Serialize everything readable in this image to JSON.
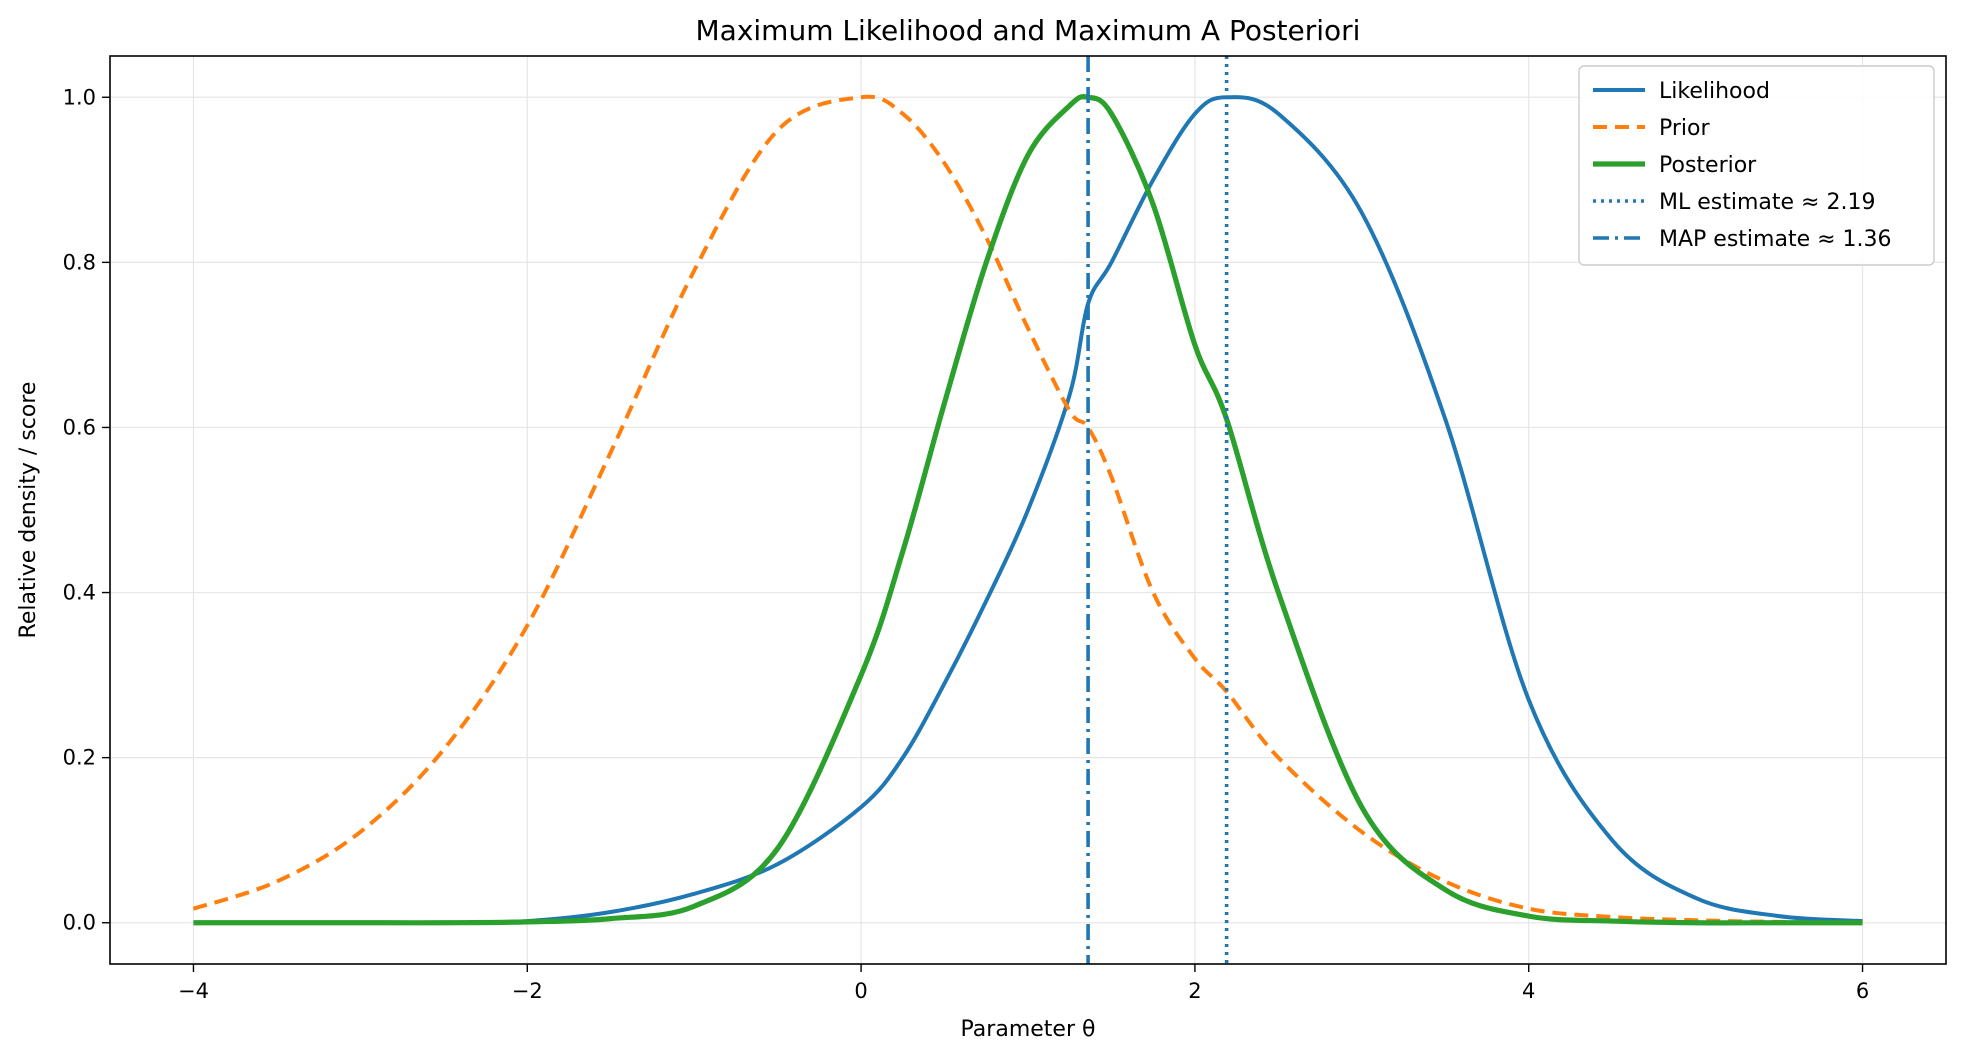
{
  "chart_data": {
    "type": "line",
    "title": "Maximum Likelihood and Maximum A Posteriori",
    "xlabel": "Parameter θ",
    "ylabel": "Relative density / score",
    "xlim": [
      -4.5,
      6.5
    ],
    "ylim": [
      -0.05,
      1.05
    ],
    "xticks": [
      -4,
      -2,
      0,
      2,
      4,
      6
    ],
    "xtick_labels": [
      "−4",
      "−2",
      "0",
      "2",
      "4",
      "6"
    ],
    "yticks": [
      0.0,
      0.2,
      0.4,
      0.6,
      0.8,
      1.0
    ],
    "ytick_labels": [
      "0.0",
      "0.2",
      "0.4",
      "0.6",
      "0.8",
      "1.0"
    ],
    "grid": true,
    "legend_position": "top-right",
    "x": [
      -4.0,
      -3.5,
      -3.0,
      -2.5,
      -2.0,
      -1.5,
      -1.0,
      -0.5,
      0.0,
      0.25,
      0.5,
      0.75,
      1.0,
      1.25,
      1.36,
      1.5,
      1.75,
      2.0,
      2.19,
      2.5,
      3.0,
      3.5,
      4.0,
      4.5,
      5.0,
      5.5,
      6.0
    ],
    "series": [
      {
        "name": "Likelihood",
        "color": "#1f77b4",
        "style": "solid",
        "values": [
          0.0,
          0.0,
          0.0,
          0.0,
          0.002,
          0.013,
          0.035,
          0.071,
          0.14,
          0.2,
          0.29,
          0.39,
          0.5,
          0.64,
          0.75,
          0.8,
          0.9,
          0.98,
          1.0,
          0.98,
          0.86,
          0.61,
          0.27,
          0.1,
          0.03,
          0.008,
          0.002
        ]
      },
      {
        "name": "Prior",
        "color": "#ff7f0e",
        "style": "dashed",
        "values": [
          0.017,
          0.05,
          0.11,
          0.21,
          0.36,
          0.57,
          0.79,
          0.96,
          1.0,
          0.98,
          0.92,
          0.83,
          0.72,
          0.62,
          0.6,
          0.54,
          0.4,
          0.32,
          0.28,
          0.2,
          0.11,
          0.05,
          0.017,
          0.007,
          0.003,
          0.001,
          0.0
        ]
      },
      {
        "name": "Posterior",
        "color": "#2ca02c",
        "style": "solid-thick",
        "values": [
          0.0,
          0.0,
          0.0,
          0.0,
          0.001,
          0.005,
          0.02,
          0.09,
          0.3,
          0.45,
          0.63,
          0.8,
          0.93,
          0.99,
          1.0,
          0.98,
          0.87,
          0.7,
          0.61,
          0.4,
          0.14,
          0.04,
          0.008,
          0.002,
          0.0,
          0.0,
          0.0
        ]
      }
    ],
    "vlines": [
      {
        "name": "ML estimate ≈ 2.19",
        "x": 2.19,
        "color": "#1f77b4",
        "style": "dotted"
      },
      {
        "name": "MAP estimate ≈ 1.36",
        "x": 1.36,
        "color": "#1f77b4",
        "style": "dashdot"
      }
    ]
  }
}
